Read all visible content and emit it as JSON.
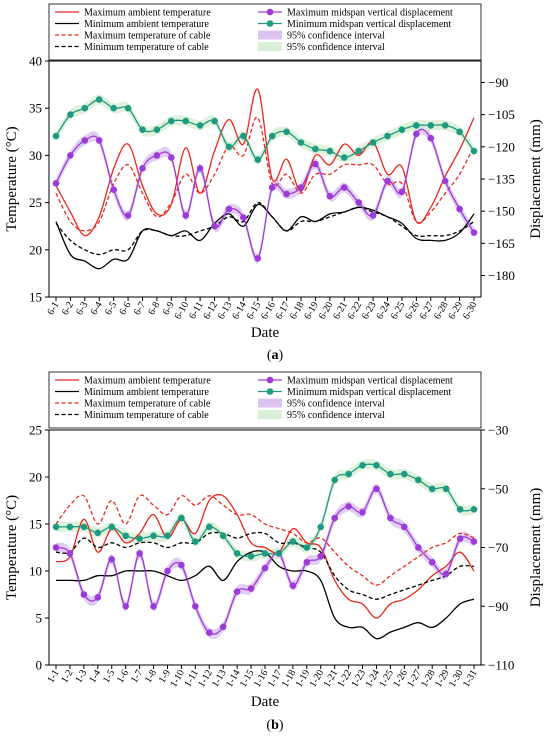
{
  "figure": {
    "panels": [
      {
        "caption_open": "(",
        "caption_letter": "a",
        "caption_close": ")",
        "xlabel": "Date",
        "ylabel_left": "Temperature (°C)",
        "ylabel_right": "Displacement (mm)"
      },
      {
        "caption_open": "(",
        "caption_letter": "b",
        "caption_close": ")",
        "xlabel": "Date",
        "ylabel_left": "Temperature (°C)",
        "ylabel_right": "Displacement (mm)"
      }
    ]
  },
  "chart_data": [
    {
      "type": "line",
      "xlabel": "Date",
      "ylabel_left": "Temperature (°C)",
      "ylabel_right": "Displacement (mm)",
      "categories": [
        "6-1",
        "6-2",
        "6-3",
        "6-4",
        "6-5",
        "6-6",
        "6-7",
        "6-8",
        "6-9",
        "6-10",
        "6-11",
        "6-12",
        "6-13",
        "6-14",
        "6-15",
        "6-16",
        "6-17",
        "6-18",
        "6-19",
        "6-20",
        "6-21",
        "6-22",
        "6-23",
        "6-24",
        "6-25",
        "6-26",
        "6-27",
        "6-28",
        "6-29",
        "6-30"
      ],
      "y_left": {
        "min": 15,
        "max": 40,
        "ticks": [
          15,
          20,
          25,
          30,
          35,
          40
        ]
      },
      "y_right": {
        "min": -190,
        "max": -80,
        "ticks": [
          -180,
          -165,
          -150,
          -135,
          -120,
          -105,
          -90
        ]
      },
      "legend_position": "top",
      "series": [
        {
          "name": "Maximum ambient temperature",
          "axis": "left",
          "color": "#e8281e",
          "dash": "solid",
          "marker": "none",
          "values": [
            26.8,
            24.0,
            21.5,
            23.5,
            28.6,
            31.2,
            26.8,
            23.8,
            24.8,
            30.8,
            26.0,
            30.5,
            33.8,
            31.2,
            37.0,
            27.5,
            29.6,
            26.2,
            30.0,
            29.0,
            31.2,
            30.0,
            31.4,
            28.0,
            28.8,
            23.0,
            24.5,
            27.8,
            30.6,
            34.0
          ]
        },
        {
          "name": "Minimum ambient temperature",
          "axis": "left",
          "color": "#000000",
          "dash": "solid",
          "marker": "none",
          "values": [
            23.0,
            19.5,
            18.8,
            18.0,
            19.0,
            19.0,
            22.0,
            22.0,
            21.5,
            22.0,
            21.0,
            22.8,
            23.8,
            22.5,
            24.8,
            23.5,
            22.0,
            23.5,
            23.0,
            23.8,
            24.0,
            24.5,
            24.2,
            23.5,
            22.8,
            21.2,
            21.0,
            21.0,
            21.8,
            23.8
          ]
        },
        {
          "name": "Maximum temperature of cable",
          "axis": "left",
          "color": "#e8281e",
          "dash": "dashed",
          "marker": "none",
          "values": [
            26.0,
            23.0,
            22.0,
            23.0,
            27.0,
            29.0,
            26.0,
            23.5,
            25.0,
            28.0,
            26.0,
            28.0,
            31.0,
            30.0,
            34.0,
            27.0,
            28.0,
            26.0,
            28.0,
            28.0,
            29.0,
            29.0,
            29.0,
            27.0,
            27.0,
            23.0,
            24.0,
            26.0,
            28.0,
            31.0
          ]
        },
        {
          "name": "Minimum temperature of cable",
          "axis": "left",
          "color": "#000000",
          "dash": "dashed",
          "marker": "none",
          "values": [
            22.8,
            21.0,
            20.0,
            19.5,
            20.0,
            20.0,
            22.0,
            22.0,
            21.5,
            21.5,
            22.0,
            22.5,
            23.5,
            23.0,
            25.0,
            23.5,
            22.0,
            23.0,
            23.0,
            23.5,
            24.0,
            24.5,
            24.0,
            23.5,
            22.5,
            21.5,
            21.5,
            21.5,
            22.0,
            23.0
          ]
        },
        {
          "name": "Maximum midspan vertical displacement",
          "axis": "right",
          "color": "#9d3bd9",
          "dash": "solid",
          "marker": "circle",
          "band_label": "95% confidence interval",
          "band_color": "#dcc3f2",
          "values": [
            -137,
            -124,
            -117,
            -117,
            -140,
            -152,
            -130,
            -124,
            -125,
            -152,
            -130,
            -157,
            -149,
            -153,
            -172,
            -139,
            -142,
            -139,
            -128,
            -143,
            -139,
            -146,
            -152,
            -136,
            -141,
            -114,
            -116,
            -136,
            -149,
            -160
          ]
        },
        {
          "name": "Minimum midspan vertical displacement",
          "axis": "right",
          "color": "#1f9a82",
          "dash": "solid",
          "marker": "circle",
          "band_label": "95% confidence interval",
          "band_color": "#d7efd5",
          "values": [
            -115,
            -105,
            -102,
            -98,
            -102,
            -102,
            -112,
            -112,
            -108,
            -108,
            -110,
            -108,
            -120,
            -115,
            -126,
            -115,
            -113,
            -118,
            -121,
            -122,
            -125,
            -122,
            -118,
            -115,
            -112,
            -110,
            -110,
            -110,
            -113,
            -122
          ]
        }
      ]
    },
    {
      "type": "line",
      "xlabel": "Date",
      "ylabel_left": "Temperature (°C)",
      "ylabel_right": "Displacement (mm)",
      "categories": [
        "1-1",
        "1-2",
        "1-3",
        "1-4",
        "1-5",
        "1-6",
        "1-7",
        "1-8",
        "1-9",
        "1-10",
        "1-11",
        "1-12",
        "1-13",
        "1-14",
        "1-15",
        "1-16",
        "1-17",
        "1-18",
        "1-19",
        "1-20",
        "1-21",
        "1-22",
        "1-23",
        "1-24",
        "1-25",
        "1-26",
        "1-27",
        "1-28",
        "1-29",
        "1-30",
        "1-31"
      ],
      "y_left": {
        "min": 0,
        "max": 25,
        "ticks": [
          0,
          5,
          10,
          15,
          20,
          25
        ]
      },
      "y_right": {
        "min": -110,
        "max": -30,
        "ticks": [
          -110,
          -90,
          -70,
          -50,
          -30
        ]
      },
      "legend_position": "top",
      "series": [
        {
          "name": "Maximum ambient temperature",
          "axis": "left",
          "color": "#e8281e",
          "dash": "solid",
          "marker": "none",
          "values": [
            11.0,
            11.5,
            15.5,
            12.0,
            14.5,
            13.0,
            14.0,
            16.0,
            13.5,
            15.5,
            14.0,
            17.5,
            18.0,
            16.0,
            13.0,
            12.5,
            12.0,
            14.5,
            13.0,
            12.5,
            9.0,
            7.0,
            6.5,
            5.0,
            6.5,
            7.0,
            8.0,
            9.5,
            10.5,
            12.0,
            10.0
          ]
        },
        {
          "name": "Minimum ambient temperature",
          "axis": "left",
          "color": "#000000",
          "dash": "solid",
          "marker": "none",
          "values": [
            9.0,
            9.0,
            9.0,
            9.5,
            9.5,
            10.0,
            10.0,
            10.0,
            9.5,
            9.0,
            9.5,
            10.5,
            9.0,
            11.0,
            12.0,
            12.0,
            10.5,
            10.0,
            10.0,
            9.0,
            5.0,
            4.0,
            4.0,
            2.8,
            3.5,
            4.0,
            4.5,
            4.0,
            5.0,
            6.5,
            7.0
          ]
        },
        {
          "name": "Maximum temperature of cable",
          "axis": "left",
          "color": "#e8281e",
          "dash": "dashed",
          "marker": "none",
          "values": [
            15.0,
            17.0,
            18.0,
            15.0,
            17.5,
            15.0,
            18.0,
            17.0,
            16.0,
            18.0,
            17.0,
            18.0,
            17.0,
            16.0,
            16.0,
            15.0,
            14.5,
            14.0,
            13.0,
            13.5,
            12.0,
            10.5,
            9.5,
            8.5,
            9.5,
            10.5,
            11.5,
            12.5,
            13.0,
            14.0,
            13.5
          ]
        },
        {
          "name": "Minimum temperature of cable",
          "axis": "left",
          "color": "#000000",
          "dash": "dashed",
          "marker": "none",
          "values": [
            12.0,
            12.0,
            13.5,
            12.5,
            13.0,
            12.5,
            13.0,
            13.0,
            12.5,
            13.0,
            13.0,
            14.0,
            14.0,
            13.5,
            14.0,
            14.0,
            13.0,
            13.0,
            12.5,
            12.0,
            9.5,
            8.0,
            7.5,
            7.0,
            7.5,
            8.0,
            8.5,
            9.0,
            9.5,
            10.5,
            10.5
          ]
        },
        {
          "name": "Maximum midspan vertical displacement",
          "axis": "right",
          "color": "#9d3bd9",
          "dash": "solid",
          "marker": "circle",
          "band_label": "95% confidence interval",
          "band_color": "#dcc3f2",
          "values": [
            -70,
            -72,
            -86,
            -87,
            -74,
            -90,
            -72,
            -90,
            -78,
            -76,
            -90,
            -99,
            -97,
            -85,
            -84,
            -77,
            -72,
            -83,
            -75,
            -73,
            -60,
            -56,
            -58,
            -50,
            -60,
            -63,
            -70,
            -75,
            -79,
            -67,
            -68
          ]
        },
        {
          "name": "Minimum midspan vertical displacement",
          "axis": "right",
          "color": "#1f9a82",
          "dash": "solid",
          "marker": "circle",
          "band_label": "95% confidence interval",
          "band_color": "#d7efd5",
          "values": [
            -63,
            -63,
            -63,
            -65,
            -63,
            -66,
            -67,
            -66,
            -66,
            -60,
            -68,
            -63,
            -66,
            -72,
            -73,
            -72,
            -72,
            -68,
            -70,
            -63,
            -47,
            -45,
            -42,
            -42,
            -45,
            -45,
            -47,
            -50,
            -50,
            -57,
            -57
          ]
        }
      ]
    }
  ]
}
